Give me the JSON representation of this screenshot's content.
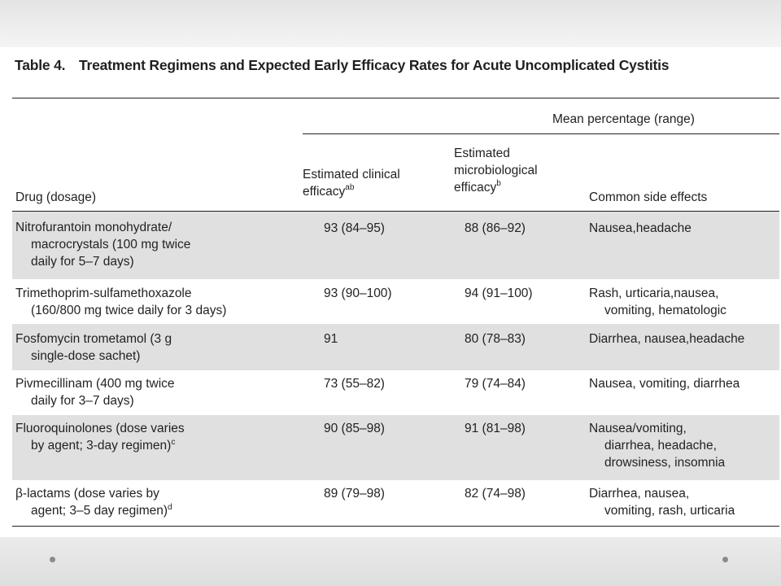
{
  "table": {
    "label": "Table 4.",
    "title": "Treatment Regimens and Expected Early Efficacy Rates for Acute Uncomplicated Cystitis",
    "group_header": "Mean percentage (range)",
    "columns": {
      "drug": "Drug (dosage)",
      "clinical_l1": "Estimated clinical",
      "clinical_l2": "efficacy",
      "clinical_sup": "ab",
      "micro_l1": "Estimated",
      "micro_l2": "microbiological",
      "micro_l3": "efficacy",
      "micro_sup": "b",
      "side": "Common side effects"
    },
    "rows": [
      {
        "drug": [
          "Nitrofurantoin monohydrate/",
          "macrocrystals (100 mg twice",
          "daily for 5–7 days)"
        ],
        "drug_sup": "",
        "clinical": "93 (84–95)",
        "micro": "88 (86–92)",
        "side": [
          "Nausea,headache"
        ],
        "shaded": true
      },
      {
        "drug": [
          "Trimethoprim-sulfamethoxazole",
          "(160/800 mg twice daily for 3 days)"
        ],
        "drug_sup": "",
        "clinical": "93 (90–100)",
        "micro": "94 (91–100)",
        "side": [
          "Rash, urticaria,nausea,",
          "vomiting, hematologic"
        ],
        "shaded": false
      },
      {
        "drug": [
          "Fosfomycin trometamol (3 g",
          "single-dose sachet)"
        ],
        "drug_sup": "",
        "clinical": "91",
        "micro": "80 (78–83)",
        "side": [
          "Diarrhea, nausea,headache"
        ],
        "shaded": true
      },
      {
        "drug": [
          "Pivmecillinam (400 mg twice",
          "daily for 3–7 days)"
        ],
        "drug_sup": "",
        "clinical": "73 (55–82)",
        "micro": "79 (74–84)",
        "side": [
          "Nausea, vomiting, diarrhea"
        ],
        "shaded": false
      },
      {
        "drug": [
          "Fluoroquinolones (dose varies",
          "by agent; 3-day regimen)"
        ],
        "drug_sup": "c",
        "clinical": "90 (85–98)",
        "micro": "91 (81–98)",
        "side": [
          "Nausea/vomiting,",
          "diarrhea, headache,",
          "drowsiness, insomnia"
        ],
        "shaded": true
      },
      {
        "drug": [
          "β-lactams (dose varies by",
          "agent; 3–5 day regimen)"
        ],
        "drug_sup": "d",
        "clinical": "89 (79–98)",
        "micro": "82 (74–98)",
        "side": [
          "Diarrhea, nausea,",
          "vomiting, rash, urticaria"
        ],
        "shaded": false
      }
    ]
  }
}
